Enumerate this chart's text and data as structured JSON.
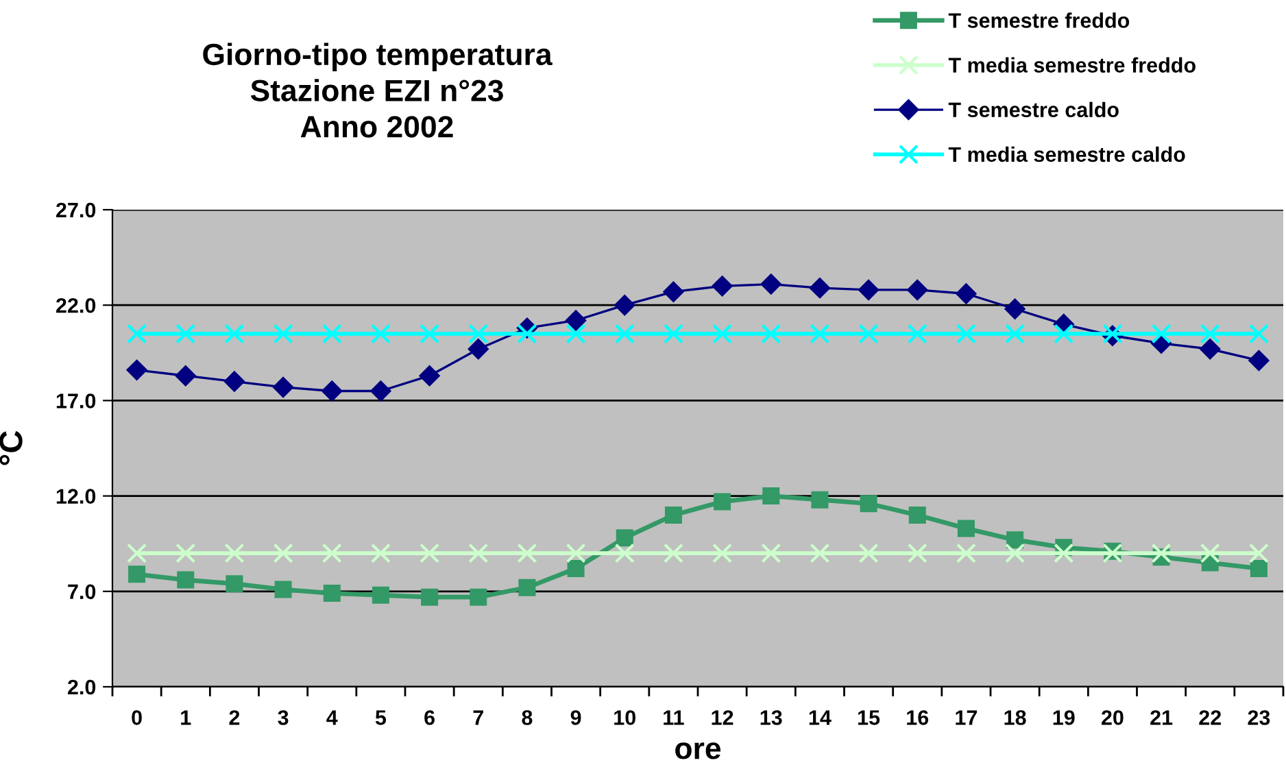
{
  "chart_data": {
    "type": "line",
    "title": "Giorno-tipo temperatura\nStazione EZI n°23\nAnno 2002",
    "xlabel": "ore",
    "ylabel": "°C",
    "categories": [
      "0",
      "1",
      "2",
      "3",
      "4",
      "5",
      "6",
      "7",
      "8",
      "9",
      "10",
      "11",
      "12",
      "13",
      "14",
      "15",
      "16",
      "17",
      "18",
      "19",
      "20",
      "21",
      "22",
      "23"
    ],
    "series": [
      {
        "name": "T semestre freddo",
        "color": "#339966",
        "marker": "square",
        "values": [
          7.9,
          7.6,
          7.4,
          7.1,
          6.9,
          6.8,
          6.7,
          6.7,
          7.2,
          8.2,
          9.8,
          11.0,
          11.7,
          12.0,
          11.8,
          11.6,
          11.0,
          10.3,
          9.7,
          9.3,
          9.1,
          8.8,
          8.5,
          8.2
        ]
      },
      {
        "name": "T media semestre freddo",
        "color": "#ccffcc",
        "marker": "cross",
        "values": [
          9.0,
          9.0,
          9.0,
          9.0,
          9.0,
          9.0,
          9.0,
          9.0,
          9.0,
          9.0,
          9.0,
          9.0,
          9.0,
          9.0,
          9.0,
          9.0,
          9.0,
          9.0,
          9.0,
          9.0,
          9.0,
          9.0,
          9.0,
          9.0
        ]
      },
      {
        "name": "T semestre caldo",
        "color": "#000080",
        "marker": "diamond",
        "values": [
          18.6,
          18.3,
          18.0,
          17.7,
          17.5,
          17.5,
          18.3,
          19.7,
          20.8,
          21.2,
          22.0,
          22.7,
          23.0,
          23.1,
          22.9,
          22.8,
          22.8,
          22.6,
          21.8,
          21.0,
          20.4,
          20.0,
          19.7,
          19.1
        ]
      },
      {
        "name": "T media semestre caldo",
        "color": "#00ffff",
        "marker": "cross",
        "values": [
          20.5,
          20.5,
          20.5,
          20.5,
          20.5,
          20.5,
          20.5,
          20.5,
          20.5,
          20.5,
          20.5,
          20.5,
          20.5,
          20.5,
          20.5,
          20.5,
          20.5,
          20.5,
          20.5,
          20.5,
          20.5,
          20.5,
          20.5,
          20.5
        ]
      }
    ],
    "ylim": [
      2,
      27
    ],
    "yticks": [
      {
        "value": 2,
        "label": "2.0"
      },
      {
        "value": 7,
        "label": "7.0"
      },
      {
        "value": 12,
        "label": "12.0"
      },
      {
        "value": 17,
        "label": "17.0"
      },
      {
        "value": 22,
        "label": "22.0"
      },
      {
        "value": 27,
        "label": "27.0"
      }
    ],
    "grid": "y",
    "legend": "top right",
    "line_style": "solid"
  }
}
